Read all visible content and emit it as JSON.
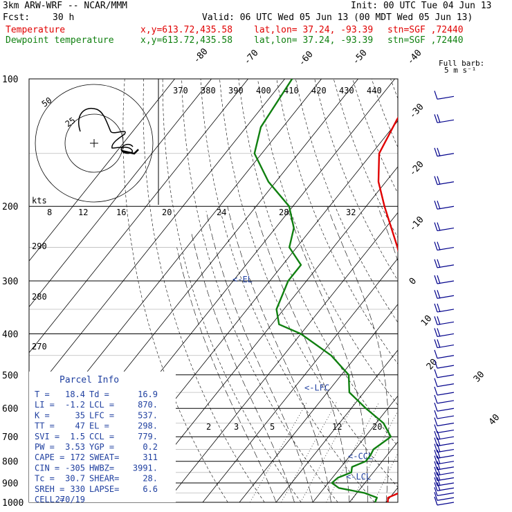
{
  "header": {
    "model": "3km ARW-WRF -- NCAR/MMM",
    "init": "Init: 00 UTC Tue 04 Jun 13",
    "fcst_label": "Fcst:",
    "fcst_value": "30 h",
    "valid": "Valid: 06 UTC Wed 05 Jun 13 (00 MDT Wed 05 Jun 13)",
    "temp_label": "Temperature",
    "dew_label": "Dewpoint temperature",
    "xy": "x,y=613.72,435.58",
    "latlon": "lat,lon= 37.24, -93.39",
    "stn": "stn=SGF ,72440"
  },
  "barb_legend": [
    "Full barb:",
    "5 m s⁻¹"
  ],
  "parcel_info": {
    "title": "Parcel Info",
    "rows": [
      [
        "T  =",
        "18.4",
        "Td =",
        "16.9"
      ],
      [
        "LI =",
        "-1.2",
        "LCL =",
        "870."
      ],
      [
        "K  =",
        "35",
        "LFC =",
        "537."
      ],
      [
        "TT =",
        "47",
        "EL =",
        "298."
      ],
      [
        "SVI =",
        "1.5",
        "CCL =",
        "779."
      ],
      [
        "PW =",
        "3.53",
        "YGP =",
        "0.2"
      ],
      [
        "CAPE =",
        "172",
        "SWEAT=",
        "311"
      ],
      [
        "CIN =",
        "-305",
        "HWBZ=",
        "3991."
      ],
      [
        "Tc =",
        "30.7",
        "SHEAR=",
        "28."
      ],
      [
        "SREH =",
        "330",
        "LAPSE=",
        "6.6"
      ],
      [
        "CELL =",
        "270/19",
        "",
        ""
      ]
    ]
  },
  "hodograph": {
    "kts_label": "kts",
    "ring_labels": [
      "25",
      "50"
    ],
    "speed_ticks": [
      "8",
      "12",
      "16",
      "20",
      "24",
      "28",
      "32"
    ]
  },
  "chart_data": {
    "type": "line",
    "title": "",
    "y_axis": {
      "label": "",
      "scale": "log-pressure",
      "ticks": [
        100,
        200,
        300,
        400,
        500,
        600,
        700,
        800,
        900,
        1000
      ]
    },
    "isotherm_labels": [
      "-80",
      "-70",
      "-60",
      "-50",
      "-40",
      "-30",
      "-20",
      "-10",
      "0",
      "10",
      "20",
      "30",
      "40"
    ],
    "theta_labels": [
      "370",
      "380",
      "390",
      "400",
      "410",
      "420",
      "430",
      "440"
    ],
    "mixing_ratio_labels": [
      "2",
      "3",
      "5",
      "12",
      "20"
    ],
    "theta_left_labels": [
      "290",
      "280",
      "270"
    ],
    "levels": [
      {
        "text": "<-EL",
        "p": 298
      },
      {
        "text": "<-LFC",
        "p": 537
      },
      {
        "text": "<-CCL",
        "p": 779
      },
      {
        "text": "<-LCL",
        "p": 870
      }
    ],
    "series": [
      {
        "name": "Temperature",
        "color": "#e00000",
        "points": [
          [
            1000,
            20.5
          ],
          [
            975,
            19.5
          ],
          [
            950,
            21.5
          ],
          [
            925,
            22.5
          ],
          [
            900,
            23.0
          ],
          [
            850,
            22.0
          ],
          [
            800,
            19.5
          ],
          [
            750,
            16.0
          ],
          [
            700,
            12.5
          ],
          [
            650,
            10.5
          ],
          [
            600,
            8.5
          ],
          [
            550,
            4.5
          ],
          [
            500,
            1.5
          ],
          [
            450,
            -3.0
          ],
          [
            400,
            -8.5
          ],
          [
            350,
            -15.0
          ],
          [
            300,
            -23.0
          ],
          [
            250,
            -32.5
          ],
          [
            200,
            -45.0
          ],
          [
            175,
            -52.0
          ],
          [
            150,
            -58.0
          ],
          [
            125,
            -60.5
          ],
          [
            110,
            -62.0
          ],
          [
            100,
            -63.0
          ]
        ]
      },
      {
        "name": "Dewpoint temperature",
        "color": "#108010",
        "points": [
          [
            1000,
            17.0
          ],
          [
            975,
            16.5
          ],
          [
            950,
            12.0
          ],
          [
            925,
            4.0
          ],
          [
            900,
            1.0
          ],
          [
            875,
            1.5
          ],
          [
            850,
            4.0
          ],
          [
            825,
            3.0
          ],
          [
            800,
            5.5
          ],
          [
            775,
            5.5
          ],
          [
            750,
            5.0
          ],
          [
            725,
            6.0
          ],
          [
            700,
            7.0
          ],
          [
            650,
            2.0
          ],
          [
            600,
            -6.0
          ],
          [
            550,
            -14.0
          ],
          [
            500,
            -18.0
          ],
          [
            450,
            -27.0
          ],
          [
            400,
            -40.0
          ],
          [
            380,
            -48.0
          ],
          [
            350,
            -52.0
          ],
          [
            300,
            -55.0
          ],
          [
            275,
            -55.0
          ],
          [
            250,
            -62.0
          ],
          [
            225,
            -65.0
          ],
          [
            200,
            -71.0
          ],
          [
            175,
            -82.0
          ],
          [
            150,
            -92.0
          ],
          [
            130,
            -96.0
          ],
          [
            100,
            -98.0
          ]
        ]
      }
    ],
    "wind_barbs": {
      "units": "m s-1",
      "levels": [
        [
          1000,
          7
        ],
        [
          975,
          9
        ],
        [
          950,
          12
        ],
        [
          925,
          15
        ],
        [
          900,
          16
        ],
        [
          875,
          16
        ],
        [
          850,
          16
        ],
        [
          825,
          15
        ],
        [
          800,
          15
        ],
        [
          775,
          14
        ],
        [
          750,
          14
        ],
        [
          725,
          13
        ],
        [
          700,
          13
        ],
        [
          675,
          12
        ],
        [
          650,
          12
        ],
        [
          625,
          12
        ],
        [
          600,
          12
        ],
        [
          575,
          12
        ],
        [
          550,
          11
        ],
        [
          525,
          11
        ],
        [
          500,
          11
        ],
        [
          475,
          12
        ],
        [
          450,
          12
        ],
        [
          425,
          13
        ],
        [
          400,
          13
        ],
        [
          375,
          14
        ],
        [
          350,
          14
        ],
        [
          325,
          15
        ],
        [
          300,
          15
        ],
        [
          275,
          15
        ],
        [
          250,
          16
        ],
        [
          225,
          16
        ],
        [
          200,
          16
        ],
        [
          175,
          15
        ],
        [
          150,
          14
        ],
        [
          125,
          13
        ],
        [
          110,
          12
        ]
      ]
    }
  }
}
